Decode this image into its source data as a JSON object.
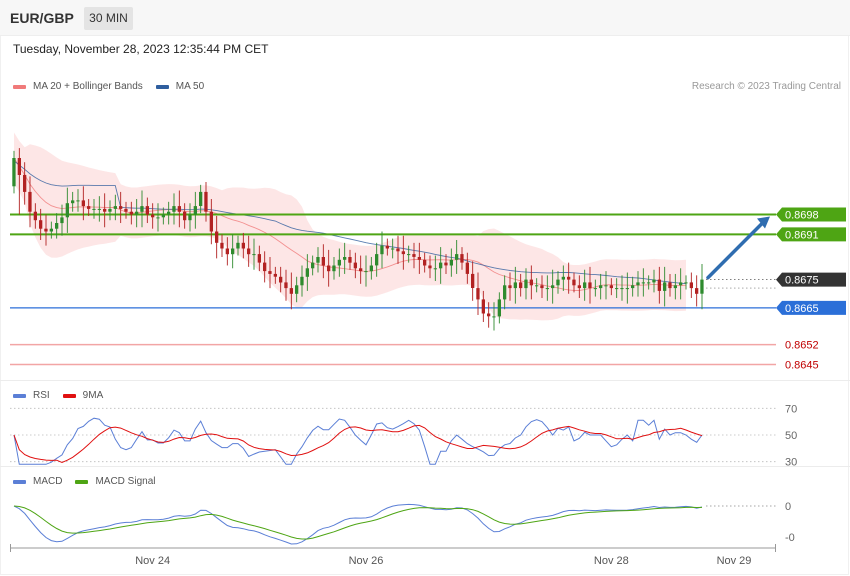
{
  "header": {
    "pair": "EUR/GBP",
    "timeframe": "30 MIN"
  },
  "datetime": "Tuesday, November 28, 2023 12:35:44 PM CET",
  "credit": "Research © 2023 Trading Central",
  "colors": {
    "ma20": "#f07a7a",
    "bollinger_fill": "#fde3e3",
    "ma50": "#2f5e9e",
    "bull": "#2e8b2e",
    "bear": "#b22222",
    "resistance": "#4ea514",
    "pivot": "#2b6fd8",
    "support": "#f2a5a5",
    "support_text": "#c00000",
    "current": "#333333",
    "arrow": "#2f6db0",
    "rsi": "#5b7fd6",
    "rsi_ma": "#e01010",
    "macd": "#5b7fd6",
    "macd_signal": "#4ea514"
  },
  "chart_data": [
    {
      "type": "candlestick",
      "title": "EUR/GBP",
      "legend": [
        {
          "name": "MA 20 + Bollinger Bands",
          "color": "#f07a7a"
        },
        {
          "name": "MA 50",
          "color": "#2f5e9e"
        }
      ],
      "legend_position": "top-left",
      "ylim": [
        0.86395,
        0.87385
      ],
      "x_ticks": [
        "Nov 24",
        "Nov 26",
        "Nov 28",
        "Nov 29"
      ],
      "levels": [
        {
          "value": 0.8698,
          "label": "0.8698",
          "kind": "resistance"
        },
        {
          "value": 0.8691,
          "label": "0.8691",
          "kind": "resistance"
        },
        {
          "value": 0.8675,
          "label": "0.8675",
          "kind": "current"
        },
        {
          "value": 0.8665,
          "label": "0.8665",
          "kind": "pivot"
        },
        {
          "value": 0.8652,
          "label": "0.8652",
          "kind": "support"
        },
        {
          "value": 0.8645,
          "label": "0.8645",
          "kind": "support"
        }
      ],
      "close_series": [
        0.8718,
        0.8712,
        0.8706,
        0.8699,
        0.8696,
        0.8693,
        0.8692,
        0.8693,
        0.8695,
        0.8697,
        0.8702,
        0.8703,
        0.8703,
        0.8701,
        0.87,
        0.87,
        0.87,
        0.8699,
        0.87,
        0.8701,
        0.87,
        0.8699,
        0.8698,
        0.8699,
        0.8701,
        0.8698,
        0.8697,
        0.8697,
        0.8698,
        0.8699,
        0.8701,
        0.8699,
        0.8696,
        0.8698,
        0.8701,
        0.8706,
        0.8699,
        0.8692,
        0.8688,
        0.8686,
        0.8684,
        0.8686,
        0.8688,
        0.8686,
        0.8684,
        0.8684,
        0.8681,
        0.8678,
        0.8677,
        0.8676,
        0.8674,
        0.8672,
        0.867,
        0.8673,
        0.8676,
        0.8679,
        0.8681,
        0.8683,
        0.868,
        0.8678,
        0.868,
        0.8682,
        0.8683,
        0.8681,
        0.8679,
        0.8678,
        0.8678,
        0.868,
        0.8684,
        0.8687,
        0.8686,
        0.8686,
        0.8685,
        0.8684,
        0.8684,
        0.8683,
        0.8682,
        0.868,
        0.8679,
        0.8679,
        0.8681,
        0.868,
        0.8682,
        0.8684,
        0.8681,
        0.8677,
        0.8672,
        0.8668,
        0.8663,
        0.8662,
        0.8662,
        0.8668,
        0.8673,
        0.8672,
        0.8674,
        0.8672,
        0.8675,
        0.8673,
        0.8673,
        0.8672,
        0.8672,
        0.8673,
        0.8675,
        0.8676,
        0.8675,
        0.8673,
        0.8672,
        0.8674,
        0.8672,
        0.8672,
        0.8673,
        0.8673,
        0.8672,
        0.8672,
        0.8672,
        0.8672,
        0.8673,
        0.8674,
        0.8674,
        0.8674,
        0.8675,
        0.8671,
        0.8674,
        0.8672,
        0.8673,
        0.8674,
        0.8674,
        0.8672,
        0.867,
        0.8675
      ],
      "forecast_target": 0.8698
    },
    {
      "type": "line",
      "title": "RSI",
      "series": [
        {
          "name": "RSI",
          "color": "#5b7fd6"
        },
        {
          "name": "9MA",
          "color": "#e01010"
        }
      ],
      "y_ticks": [
        "70",
        "50",
        "30"
      ],
      "ylim": [
        26,
        74
      ]
    },
    {
      "type": "line",
      "title": "MACD",
      "series": [
        {
          "name": "MACD",
          "color": "#5b7fd6"
        },
        {
          "name": "MACD Signal",
          "color": "#4ea514"
        }
      ],
      "y_ticks": [
        "0",
        "-0"
      ]
    }
  ]
}
